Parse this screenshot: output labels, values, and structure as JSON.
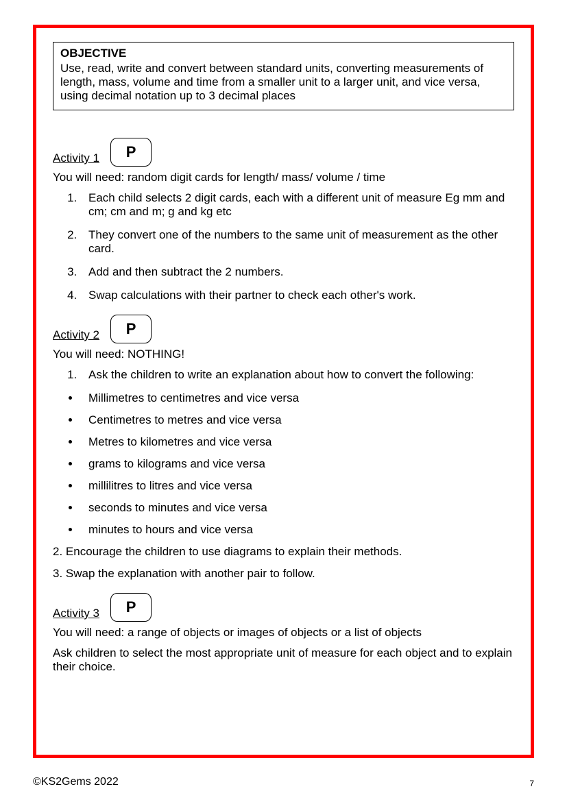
{
  "objective": {
    "title": "OBJECTIVE",
    "text": "Use, read, write and convert between standard units, converting measurements of length, mass, volume and time from a smaller unit to a larger unit, and vice versa, using decimal notation up to 3 decimal places"
  },
  "activity1": {
    "label": "Activity 1",
    "badge": "P",
    "need": "You will need:   random digit cards for length/ mass/ volume / time",
    "steps": [
      "Each child selects 2 digit cards, each with a different unit of measure Eg mm and cm; cm and m; g and kg etc",
      "They convert one of the numbers to the same unit of measurement as the other card.",
      "Add and then subtract the 2 numbers.",
      "Swap calculations with their partner to check each other's work."
    ]
  },
  "activity2": {
    "label": "Activity 2",
    "badge": "P",
    "need": "You will need: NOTHING!",
    "step1": "Ask the children to write an explanation about how to convert the following:",
    "bullets": [
      "Millimetres to centimetres and vice versa",
      "Centimetres to metres and vice versa",
      "Metres to kilometres and vice versa",
      "grams to kilograms and vice versa",
      "millilitres to litres and vice versa",
      "seconds to minutes and vice versa",
      "minutes to hours and vice versa"
    ],
    "step2": "2. Encourage the children to use diagrams to explain their methods.",
    "step3": "3. Swap the explanation with another pair to follow."
  },
  "activity3": {
    "label": "Activity 3",
    "badge": "P",
    "need": "You will need: a range of objects or images of objects or a list of objects",
    "body": "Ask children to select the most appropriate unit of measure for each object and to explain their choice."
  },
  "footer": {
    "copyright": "©KS2Gems 2022",
    "page": "7"
  }
}
